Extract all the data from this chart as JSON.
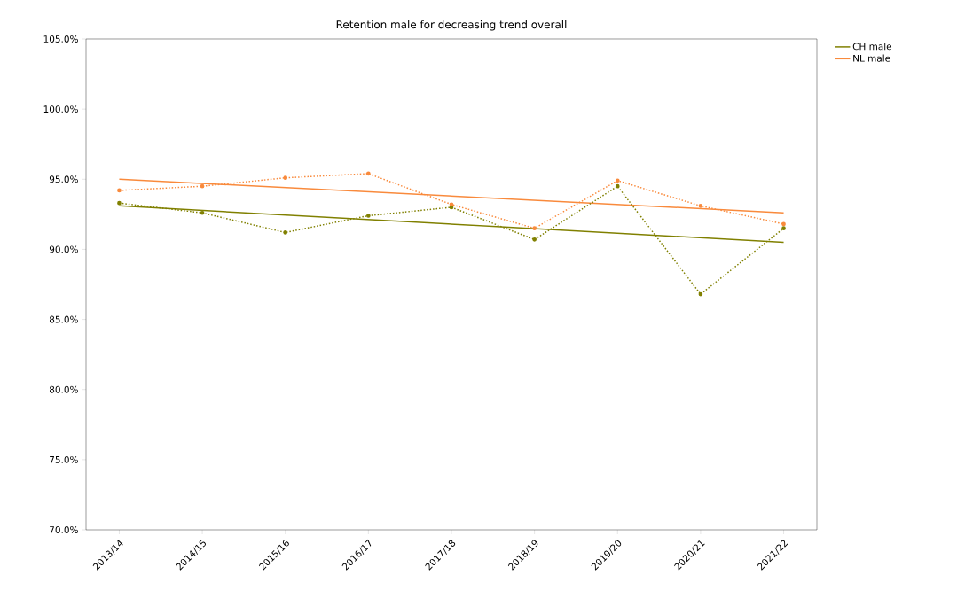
{
  "chart_data": {
    "type": "line",
    "title": "Retention male for decreasing trend overall",
    "categories": [
      "2013/14",
      "2014/15",
      "2015/16",
      "2016/17",
      "2017/18",
      "2018/19",
      "2019/20",
      "2020/21",
      "2021/22"
    ],
    "series": [
      {
        "name": "CH male",
        "color": "#808000",
        "x": [
          "2013/14",
          "2021/22"
        ],
        "values": [
          93.1,
          90.5
        ],
        "line_style": "solid",
        "marker": "none"
      },
      {
        "name": "NL male",
        "color": "#f98a3c",
        "x": [
          "2013/14",
          "2021/22"
        ],
        "values": [
          95.0,
          92.6
        ],
        "line_style": "solid",
        "marker": "none"
      },
      {
        "color": "#808000",
        "values": [
          93.3,
          92.6,
          91.2,
          92.4,
          93.0,
          90.7,
          94.5,
          86.8,
          91.5
        ],
        "line_style": "dotted",
        "marker": "circle"
      },
      {
        "color": "#f98a3c",
        "values": [
          94.2,
          94.5,
          95.1,
          95.4,
          93.2,
          91.5,
          94.9,
          93.1,
          91.8
        ],
        "line_style": "dotted",
        "marker": "circle"
      }
    ],
    "ylim": [
      70,
      105
    ],
    "yticks": [
      {
        "value": 70,
        "label": "70.0%"
      },
      {
        "value": 75,
        "label": "75.0%"
      },
      {
        "value": 80,
        "label": "80.0%"
      },
      {
        "value": 85,
        "label": "85.0%"
      },
      {
        "value": 90,
        "label": "90.0%"
      },
      {
        "value": 95,
        "label": "95.0%"
      },
      {
        "value": 100,
        "label": "100.0%"
      },
      {
        "value": 105,
        "label": "105.0%"
      }
    ],
    "grid": false,
    "legend": "top right"
  }
}
